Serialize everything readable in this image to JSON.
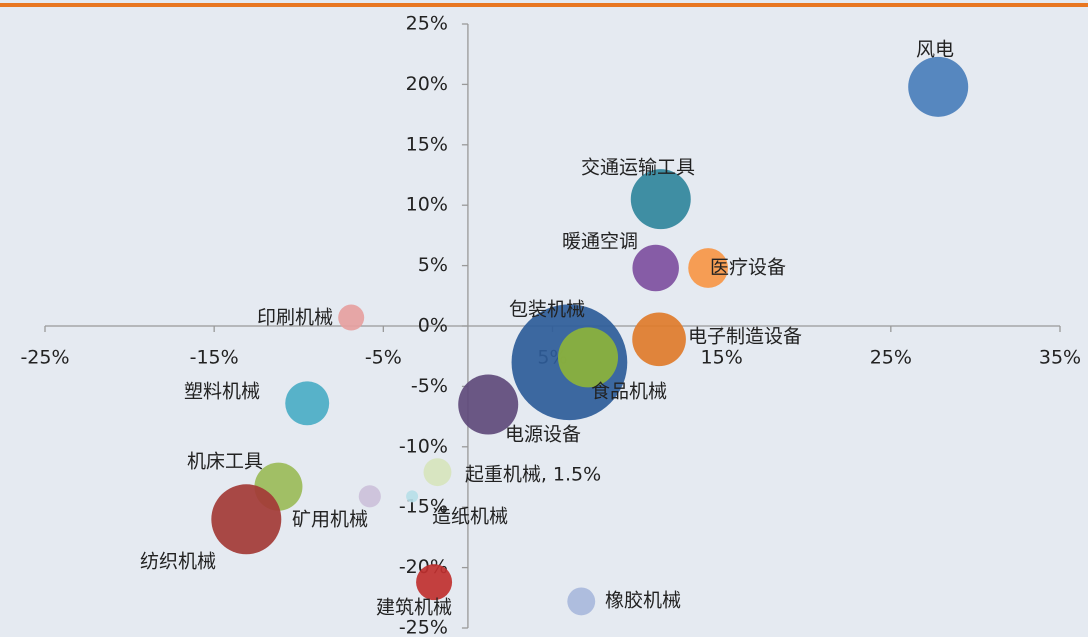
{
  "chart_data": {
    "type": "bubble",
    "xlim": [
      -25,
      35
    ],
    "ylim": [
      -25,
      25
    ],
    "xticks": [
      {
        "value": -25,
        "label": "-25%"
      },
      {
        "value": -15,
        "label": "-15%"
      },
      {
        "value": -5,
        "label": "-5%"
      },
      {
        "value": 5,
        "label": "5%"
      },
      {
        "value": 15,
        "label": "15%"
      },
      {
        "value": 25,
        "label": "25%"
      },
      {
        "value": 35,
        "label": "35%"
      }
    ],
    "yticks": [
      {
        "value": -25,
        "label": "-25%"
      },
      {
        "value": -20,
        "label": "-20%"
      },
      {
        "value": -15,
        "label": "-15%"
      },
      {
        "value": -10,
        "label": "-10%"
      },
      {
        "value": -5,
        "label": "-5%"
      },
      {
        "value": 0,
        "label": "0%"
      },
      {
        "value": 5,
        "label": "5%"
      },
      {
        "value": 10,
        "label": "10%"
      },
      {
        "value": 15,
        "label": "15%"
      },
      {
        "value": 20,
        "label": "20%"
      },
      {
        "value": 25,
        "label": "25%"
      }
    ],
    "points": [
      {
        "name": "风电",
        "x": 27.8,
        "y": 19.8,
        "size": 25,
        "color": "#4a7ebb"
      },
      {
        "name": "交通运输工具",
        "x": 11.4,
        "y": 10.5,
        "size": 25,
        "color": "#31859c"
      },
      {
        "name": "暖通空调",
        "x": 11.1,
        "y": 4.8,
        "size": 15,
        "color": "#7e4f9f"
      },
      {
        "name": "医疗设备",
        "x": 14.2,
        "y": 4.8,
        "size": 11,
        "color": "#f79646"
      },
      {
        "name": "电子制造设备",
        "x": 11.3,
        "y": -1.1,
        "size": 20,
        "color": "#e07b2b"
      },
      {
        "name": "印刷机械",
        "x": -6.9,
        "y": 0.7,
        "size": 4.7,
        "color": "#e6a0a0"
      },
      {
        "name": "包装机械",
        "x": 6.0,
        "y": -3.0,
        "size": 93,
        "color": "#2e5c99"
      },
      {
        "name": "食品机械",
        "x": 7.1,
        "y": -2.6,
        "size": 25,
        "color": "#8db33a"
      },
      {
        "name": "塑料机械",
        "x": -9.5,
        "y": -6.4,
        "size": 13.4,
        "color": "#4bacc6"
      },
      {
        "name": "电源设备",
        "x": 1.2,
        "y": -6.5,
        "size": 25,
        "color": "#604a7b"
      },
      {
        "name": "起重机械, 1.5%",
        "x": -1.8,
        "y": -12.1,
        "size": 5.4,
        "color": "#d7e4bd"
      },
      {
        "name": "机床工具",
        "x": -11.2,
        "y": -13.3,
        "size": 16,
        "color": "#9bbb59"
      },
      {
        "name": "矿用机械",
        "x": -5.8,
        "y": -14.1,
        "size": 3.4,
        "color": "#ccc0da"
      },
      {
        "name": "造纸机械",
        "x": -3.3,
        "y": -14.1,
        "size": 1,
        "color": "#b7dee8"
      },
      {
        "name": "纺织机械",
        "x": -13.1,
        "y": -16.0,
        "size": 34,
        "color": "#a33a36"
      },
      {
        "name": "建筑机械",
        "x": -2.0,
        "y": -21.2,
        "size": 9,
        "color": "#c0302f"
      },
      {
        "name": "橡胶机械",
        "x": 6.7,
        "y": -22.8,
        "size": 5.4,
        "color": "#a9b9dc"
      }
    ]
  }
}
